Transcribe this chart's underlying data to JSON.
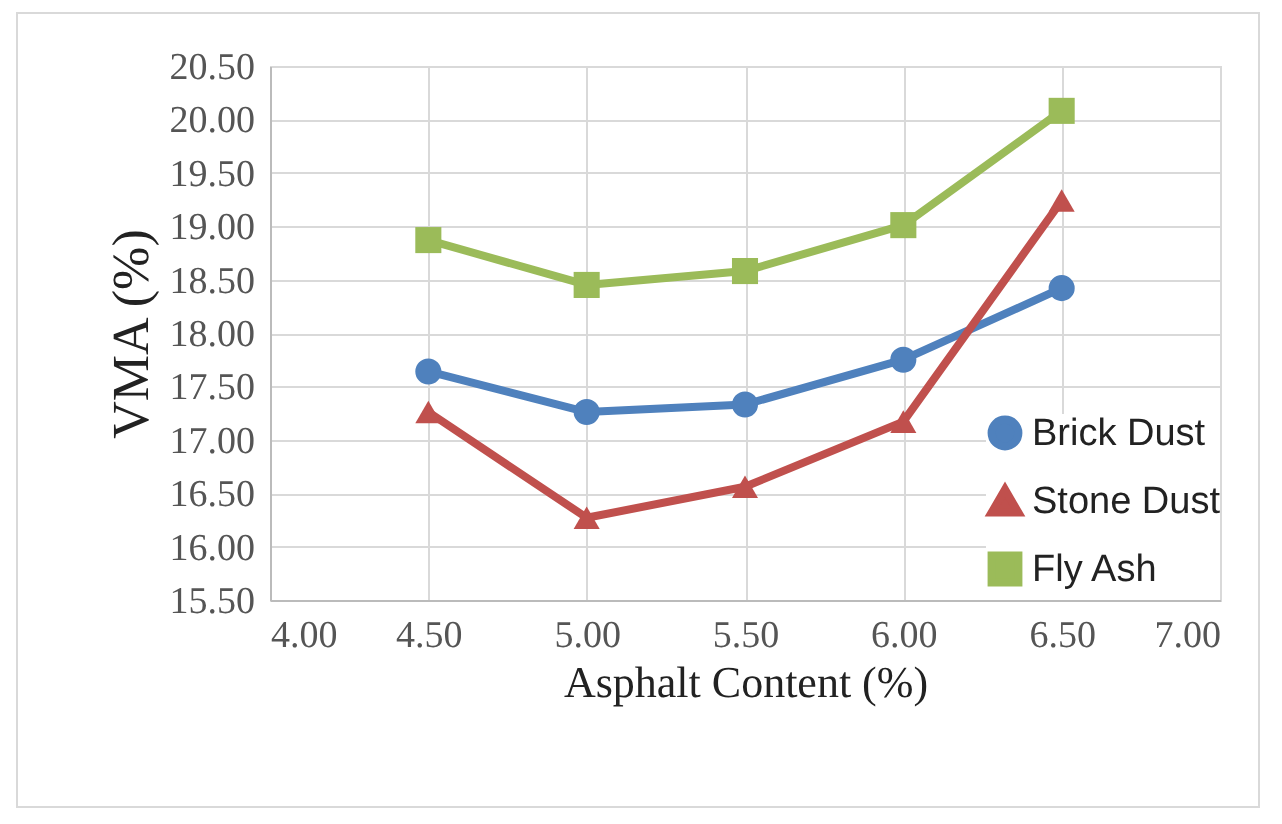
{
  "chart_data": {
    "type": "line",
    "xlabel": "Asphalt Content (%)",
    "ylabel": "VMA (%)",
    "x": [
      4.5,
      5.0,
      5.5,
      6.0,
      6.5
    ],
    "series": [
      {
        "name": "Brick Dust",
        "color": "#4f81bd",
        "marker": "circle",
        "values": [
          17.64,
          17.26,
          17.33,
          17.75,
          18.42
        ]
      },
      {
        "name": "Stone Dust",
        "color": "#c0504d",
        "marker": "triangle",
        "values": [
          17.26,
          16.27,
          16.56,
          17.17,
          19.24
        ]
      },
      {
        "name": "Fly Ash",
        "color": "#9bbb59",
        "marker": "square",
        "values": [
          18.87,
          18.45,
          18.58,
          19.01,
          20.08
        ]
      }
    ],
    "xlim": [
      4.0,
      7.0
    ],
    "xticks": [
      {
        "value": 4.0,
        "label": "4.00"
      },
      {
        "value": 4.5,
        "label": "4.50"
      },
      {
        "value": 5.0,
        "label": "5.00"
      },
      {
        "value": 5.5,
        "label": "5.50"
      },
      {
        "value": 6.0,
        "label": "6.00"
      },
      {
        "value": 6.5,
        "label": "6.50"
      },
      {
        "value": 7.0,
        "label": "7.00"
      }
    ],
    "ylim": [
      15.5,
      20.5
    ],
    "yticks": [
      {
        "value": 15.5,
        "label": "15.50"
      },
      {
        "value": 16.0,
        "label": "16.00"
      },
      {
        "value": 16.5,
        "label": "16.50"
      },
      {
        "value": 17.0,
        "label": "17.00"
      },
      {
        "value": 17.5,
        "label": "17.50"
      },
      {
        "value": 18.0,
        "label": "18.00"
      },
      {
        "value": 18.5,
        "label": "18.50"
      },
      {
        "value": 19.0,
        "label": "19.00"
      },
      {
        "value": 19.5,
        "label": "19.50"
      },
      {
        "value": 20.0,
        "label": "20.00"
      },
      {
        "value": 20.5,
        "label": "20.50"
      }
    ],
    "grid": true,
    "legend": "bottom right",
    "line_style": "solid"
  }
}
